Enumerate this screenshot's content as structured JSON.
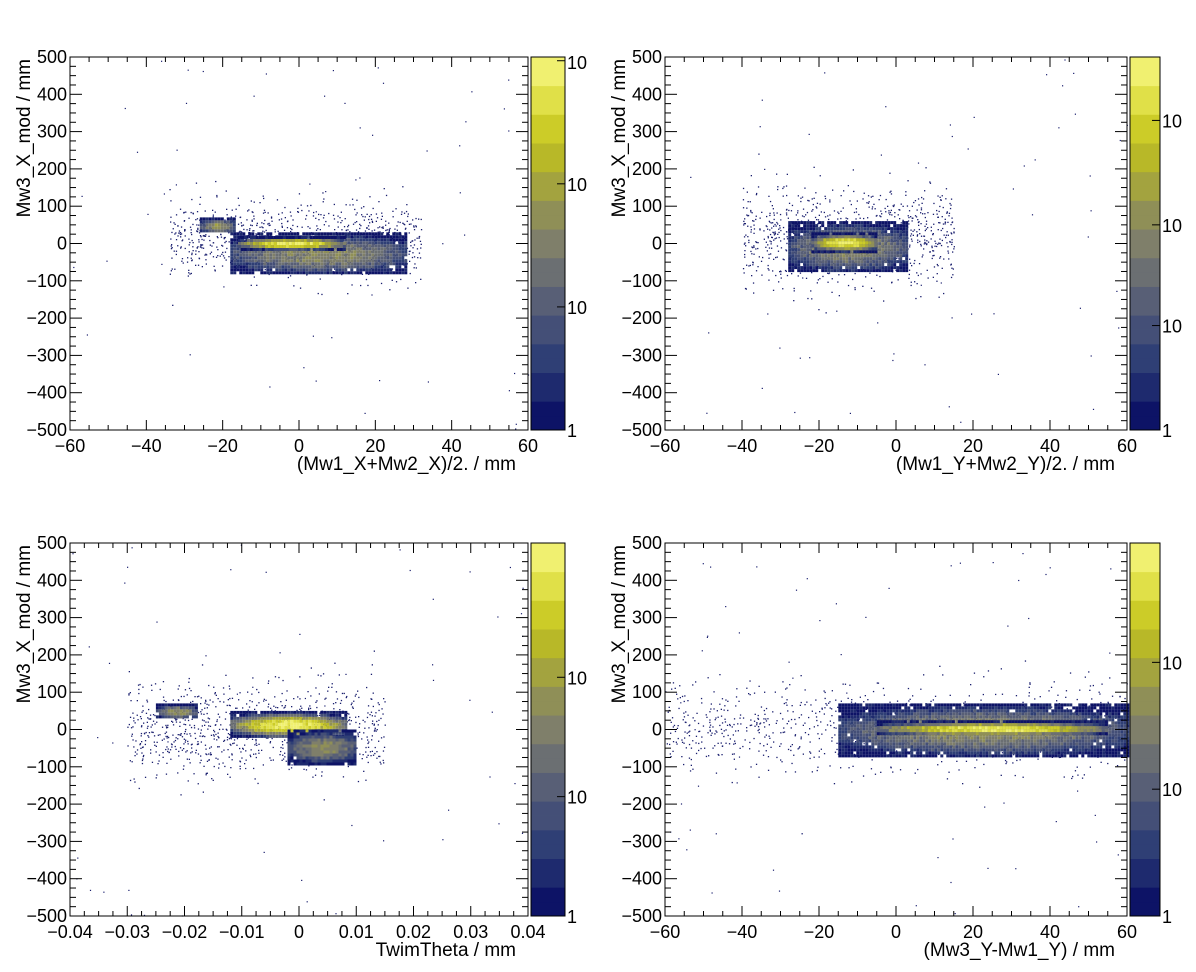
{
  "colors": {
    "palette": [
      "#0d1366",
      "#1e2a6e",
      "#2f3f75",
      "#444f77",
      "#585f76",
      "#6b6f72",
      "#7f7f6a",
      "#8f8f57",
      "#a3a33f",
      "#b8b828",
      "#cccc28",
      "#e0e048",
      "#f0f070"
    ],
    "marker": "#1a1f6e",
    "core": "#f2f26a"
  },
  "chart_data": [
    {
      "type": "heatmap",
      "xlabel": "(Mw1_X+Mw2_X)/2. / mm",
      "ylabel": "Mw3_X_mod / mm",
      "xlim": [
        -60,
        60
      ],
      "ylim": [
        -500,
        500
      ],
      "xticks": [
        -60,
        -40,
        -20,
        0,
        20,
        40,
        60
      ],
      "xticklabels": [
        "−60",
        "−40",
        "−20",
        "0",
        "20",
        "40",
        "60"
      ],
      "yticks": [
        -500,
        -400,
        -300,
        -200,
        -100,
        0,
        100,
        200,
        300,
        400,
        500
      ],
      "yticklabels": [
        "−500",
        "−400",
        "−300",
        "−200",
        "−100",
        "0",
        "100",
        "200",
        "300",
        "400",
        "500"
      ],
      "colorbar": {
        "scale": "log",
        "labels": [
          "1",
          "10",
          "10",
          "10"
        ]
      },
      "regions": [
        {
          "x": [
            -18,
            28
          ],
          "y": [
            -80,
            30
          ],
          "density": 0.55
        },
        {
          "x": [
            -16,
            12
          ],
          "y": [
            -15,
            20
          ],
          "density": 1.0
        },
        {
          "x": [
            -26,
            -17
          ],
          "y": [
            30,
            70
          ],
          "density": 0.6
        }
      ],
      "halo": {
        "x": [
          -34,
          32
        ],
        "y": [
          -90,
          110
        ]
      }
    },
    {
      "type": "heatmap",
      "xlabel": "(Mw1_Y+Mw2_Y)/2. / mm",
      "ylabel": "Mw3_X_mod / mm",
      "xlim": [
        -60,
        60
      ],
      "ylim": [
        -500,
        500
      ],
      "xticks": [
        -60,
        -40,
        -20,
        0,
        20,
        40,
        60
      ],
      "xticklabels": [
        "−60",
        "−40",
        "−20",
        "0",
        "20",
        "40",
        "60"
      ],
      "yticks": [
        -500,
        -400,
        -300,
        -200,
        -100,
        0,
        100,
        200,
        300,
        400,
        500
      ],
      "yticklabels": [
        "−500",
        "−400",
        "−300",
        "−200",
        "−100",
        "0",
        "100",
        "200",
        "300",
        "400",
        "500"
      ],
      "colorbar": {
        "scale": "log",
        "labels": [
          "1",
          "10",
          "10",
          "10"
        ]
      },
      "regions": [
        {
          "x": [
            -28,
            3
          ],
          "y": [
            -75,
            60
          ],
          "density": 0.55
        },
        {
          "x": [
            -22,
            -5
          ],
          "y": [
            -20,
            30
          ],
          "density": 1.0
        }
      ],
      "halo": {
        "x": [
          -40,
          15
        ],
        "y": [
          -110,
          150
        ]
      }
    },
    {
      "type": "heatmap",
      "xlabel": "TwimTheta / mm",
      "ylabel": "Mw3_X_mod / mm",
      "xlim": [
        -0.04,
        0.04
      ],
      "ylim": [
        -500,
        500
      ],
      "xticks": [
        -0.04,
        -0.03,
        -0.02,
        -0.01,
        0,
        0.01,
        0.02,
        0.03,
        0.04
      ],
      "xticklabels": [
        "−0.04",
        "−0.03",
        "−0.02",
        "−0.01",
        "0",
        "0.01",
        "0.02",
        "0.03",
        "0.04"
      ],
      "yticks": [
        -500,
        -400,
        -300,
        -200,
        -100,
        0,
        100,
        200,
        300,
        400,
        500
      ],
      "yticklabels": [
        "−500",
        "−400",
        "−300",
        "−200",
        "−100",
        "0",
        "100",
        "200",
        "300",
        "400",
        "500"
      ],
      "colorbar": {
        "scale": "log",
        "labels": [
          "1",
          "10",
          "10"
        ]
      },
      "regions": [
        {
          "x": [
            -0.012,
            0.008
          ],
          "y": [
            -20,
            50
          ],
          "density": 1.0
        },
        {
          "x": [
            -0.002,
            0.01
          ],
          "y": [
            -90,
            0
          ],
          "density": 0.55
        },
        {
          "x": [
            -0.025,
            -0.018
          ],
          "y": [
            30,
            70
          ],
          "density": 0.6
        }
      ],
      "halo": {
        "x": [
          -0.03,
          0.015
        ],
        "y": [
          -120,
          130
        ]
      }
    },
    {
      "type": "heatmap",
      "xlabel": "(Mw3_Y-Mw1_Y) / mm",
      "ylabel": "Mw3_X_mod / mm",
      "xlim": [
        -60,
        60
      ],
      "ylim": [
        -500,
        500
      ],
      "xticks": [
        -60,
        -40,
        -20,
        0,
        20,
        40,
        60
      ],
      "xticklabels": [
        "−60",
        "−40",
        "−20",
        "0",
        "20",
        "40",
        "60"
      ],
      "yticks": [
        -500,
        -400,
        -300,
        -200,
        -100,
        0,
        100,
        200,
        300,
        400,
        500
      ],
      "yticklabels": [
        "−500",
        "−400",
        "−300",
        "−200",
        "−100",
        "0",
        "100",
        "200",
        "300",
        "400",
        "500"
      ],
      "colorbar": {
        "scale": "log",
        "labels": [
          "1",
          "10",
          "10"
        ]
      },
      "regions": [
        {
          "x": [
            -15,
            60
          ],
          "y": [
            -70,
            70
          ],
          "density": 0.55
        },
        {
          "x": [
            -5,
            55
          ],
          "y": [
            -15,
            25
          ],
          "density": 1.0
        }
      ],
      "halo": {
        "x": [
          -60,
          60
        ],
        "y": [
          -110,
          130
        ]
      }
    }
  ]
}
